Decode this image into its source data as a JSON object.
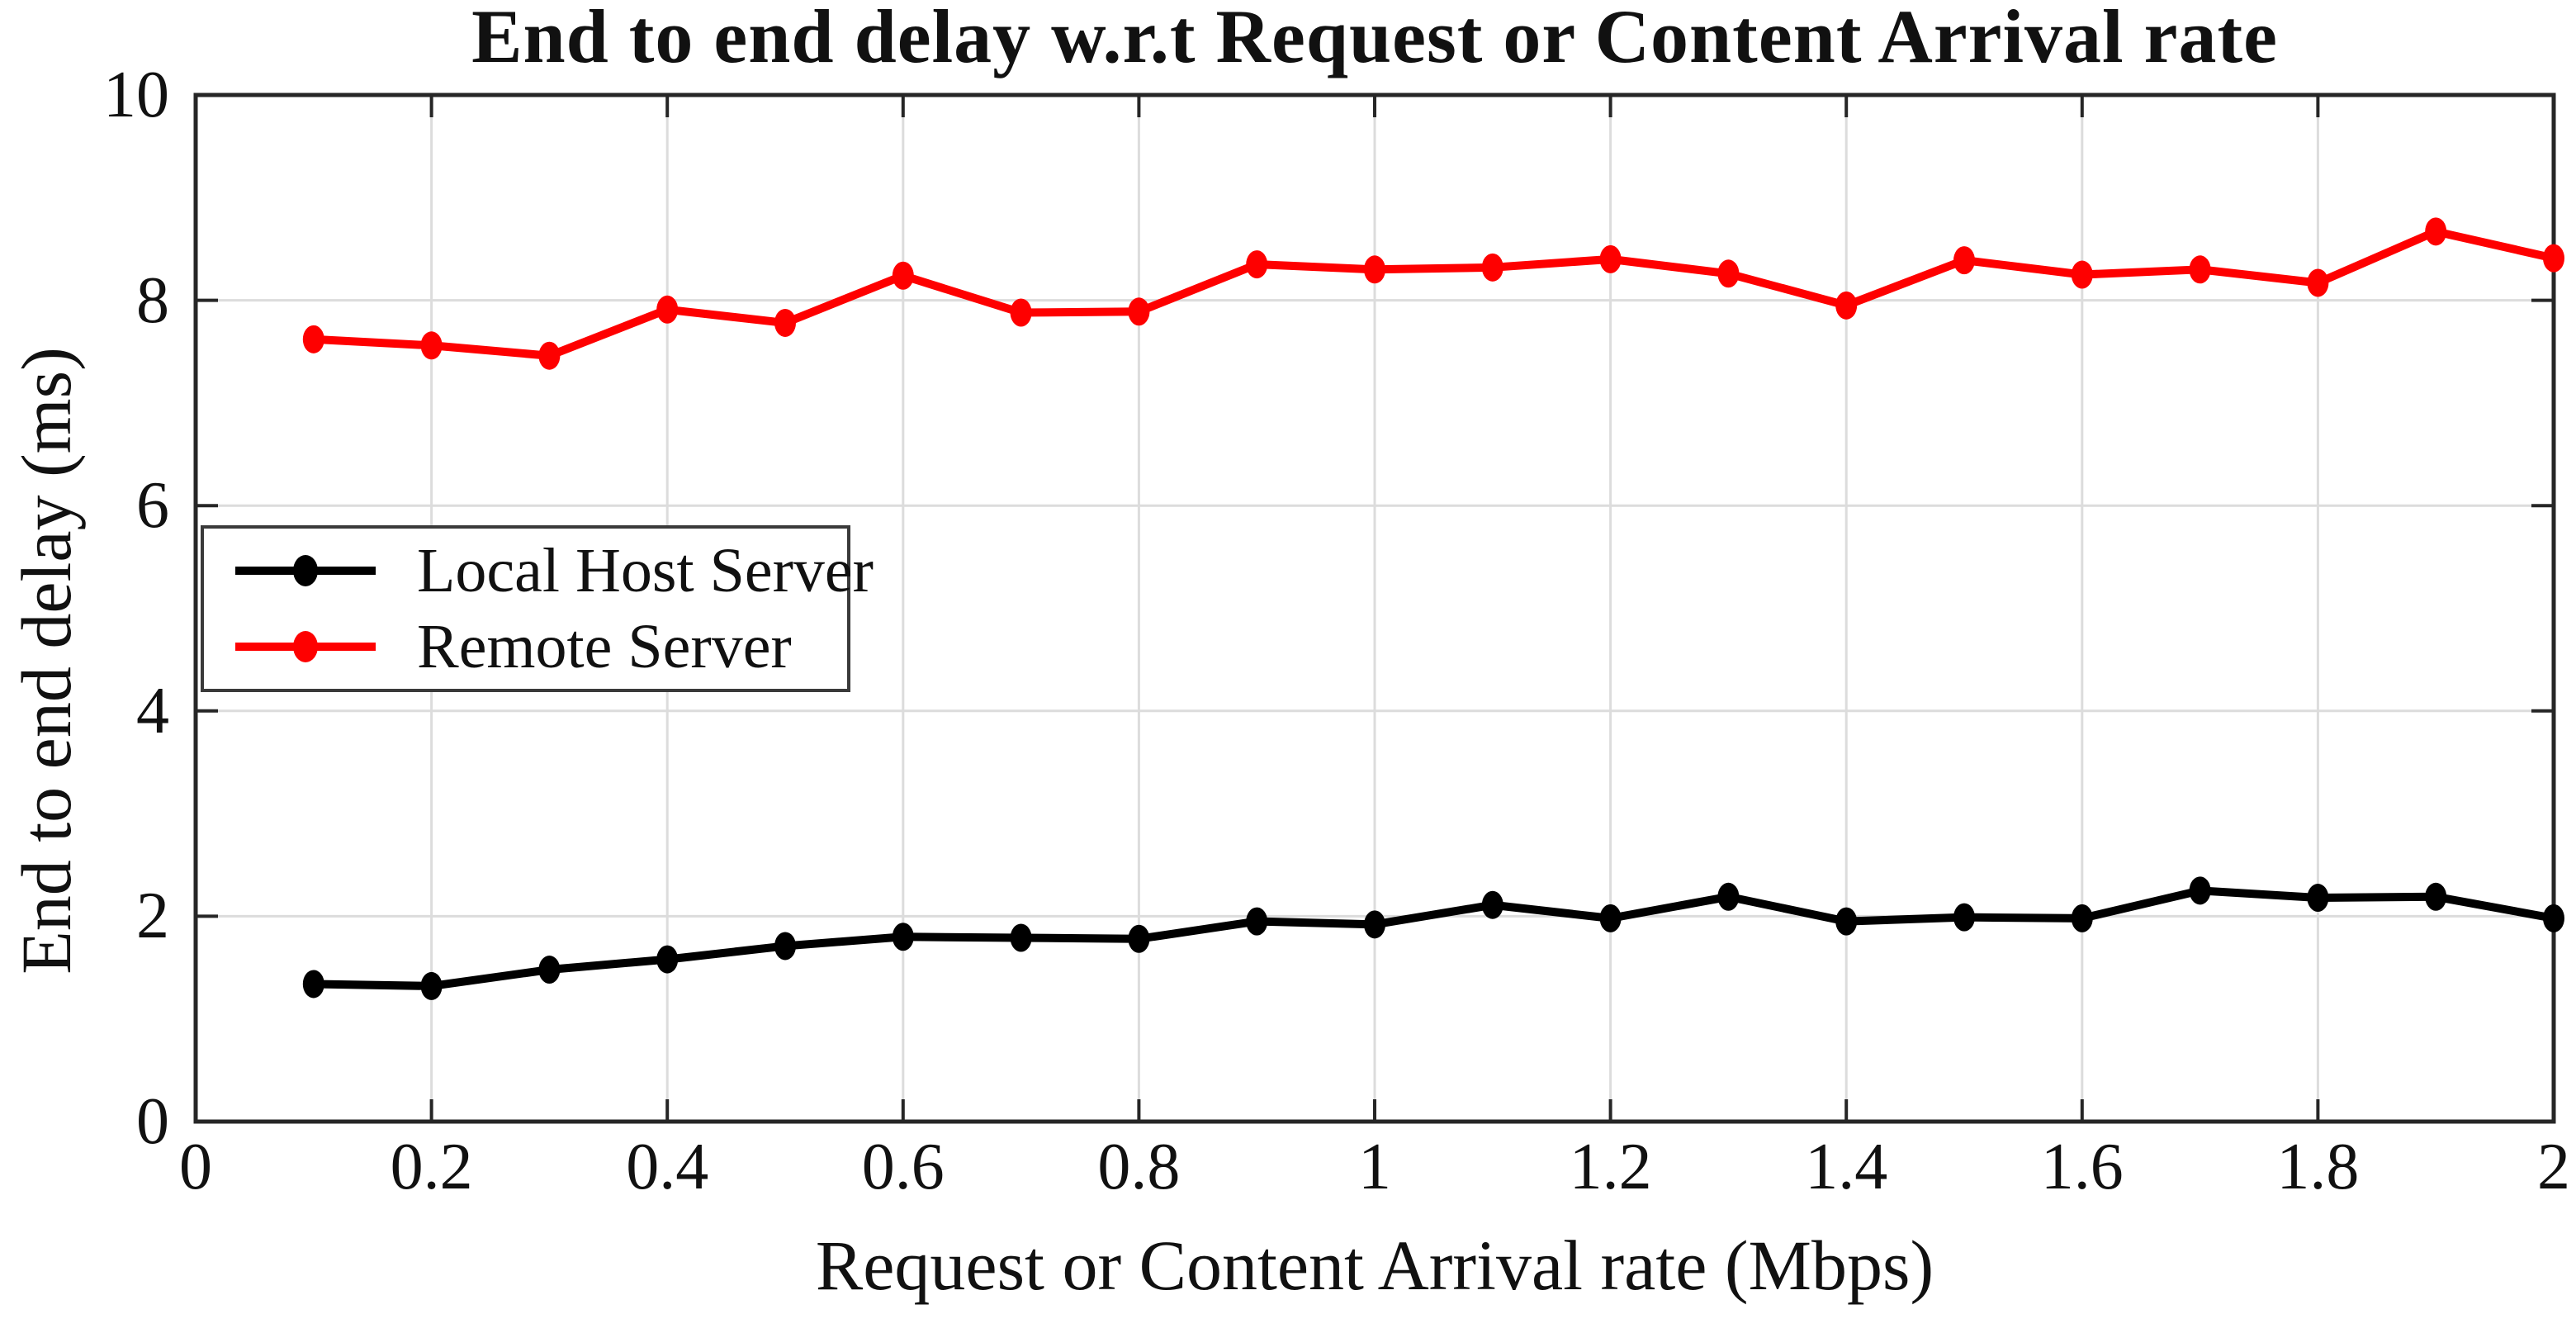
{
  "figure": {
    "title": "End to end delay w.r.t Request or Content Arrival rate",
    "xlabel": "Request or Content Arrival rate (Mbps)",
    "ylabel": "End to end delay (ms)"
  },
  "chart_data": {
    "type": "line",
    "title": "End to end delay w.r.t Request or Content Arrival rate",
    "xlabel": "Request or Content Arrival rate (Mbps)",
    "ylabel": "End to end delay (ms)",
    "xlim": [
      0,
      2
    ],
    "ylim": [
      0,
      10
    ],
    "xticks": [
      0,
      0.2,
      0.4,
      0.6,
      0.8,
      1,
      1.2,
      1.4,
      1.6,
      1.8,
      2
    ],
    "xtick_labels": [
      "0",
      "0.2",
      "0.4",
      "0.6",
      "0.8",
      "1",
      "1.2",
      "1.4",
      "1.6",
      "1.8",
      "2"
    ],
    "yticks": [
      0,
      2,
      4,
      6,
      8,
      10
    ],
    "ytick_labels": [
      "0",
      "2",
      "4",
      "6",
      "8",
      "10"
    ],
    "grid": true,
    "legend_position": "upper-left-inside",
    "x": [
      0.1,
      0.2,
      0.3,
      0.4,
      0.5,
      0.6,
      0.7,
      0.8,
      0.9,
      1.0,
      1.1,
      1.2,
      1.3,
      1.4,
      1.5,
      1.6,
      1.7,
      1.8,
      1.9,
      2.0
    ],
    "series": [
      {
        "name": "Local Host Server",
        "color": "#000000",
        "values": [
          1.34,
          1.32,
          1.48,
          1.58,
          1.71,
          1.8,
          1.79,
          1.78,
          1.95,
          1.92,
          2.11,
          1.98,
          2.19,
          1.95,
          1.99,
          1.98,
          2.25,
          2.18,
          2.19,
          1.98
        ]
      },
      {
        "name": "Remote Server",
        "color": "#fe0000",
        "values": [
          7.62,
          7.56,
          7.46,
          7.91,
          7.78,
          8.24,
          7.88,
          7.89,
          8.35,
          8.3,
          8.32,
          8.4,
          8.26,
          7.95,
          8.39,
          8.25,
          8.3,
          8.17,
          8.67,
          8.41
        ]
      }
    ]
  },
  "colors": {
    "axis": "#262626",
    "grid": "#dcdcdc",
    "text": "#111111",
    "background": "#ffffff"
  }
}
